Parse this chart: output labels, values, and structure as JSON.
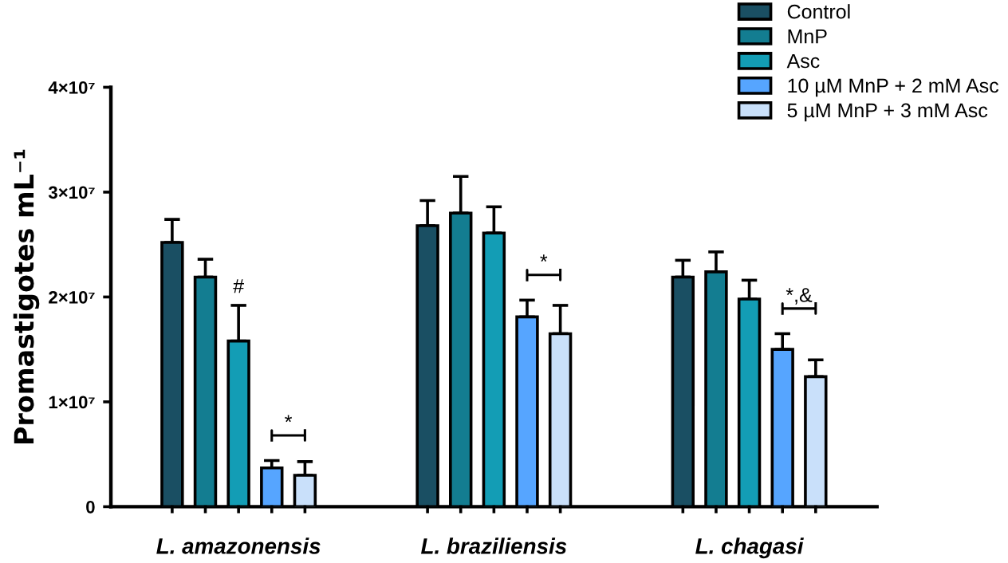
{
  "chart_data": {
    "type": "bar",
    "categories": [
      "L. amazonensis",
      "L. braziliensis",
      "L. chagasi"
    ],
    "ylabel": "Promastigotes mL⁻¹",
    "series": [
      {
        "name": "Control",
        "color": "#1a4f63",
        "values": [
          25200000,
          26800000,
          21900000
        ],
        "errors": [
          [
            25200000,
            27400000
          ],
          [
            26800000,
            29200000
          ],
          [
            21900000,
            23500000
          ]
        ]
      },
      {
        "name": "MnP",
        "color": "#137d91",
        "values": [
          21900000,
          28000000,
          22400000
        ],
        "errors": [
          [
            21900000,
            23600000
          ],
          [
            28000000,
            31500000
          ],
          [
            22400000,
            24300000
          ]
        ]
      },
      {
        "name": "Asc",
        "color": "#139db5",
        "values": [
          15800000,
          26100000,
          19800000
        ],
        "errors": [
          [
            15800000,
            19200000
          ],
          [
            26100000,
            28600000
          ],
          [
            19800000,
            21600000
          ]
        ]
      },
      {
        "name": "10 µM MnP + 2 mM Asc",
        "color": "#56a5ff",
        "values": [
          3700000,
          18100000,
          15000000
        ],
        "errors": [
          [
            3700000,
            4400000
          ],
          [
            18100000,
            19700000
          ],
          [
            15000000,
            16500000
          ]
        ]
      },
      {
        "name": "5 µM MnP + 3 mM Asc",
        "color": "#c9e0fa",
        "values": [
          3000000,
          16500000,
          12400000
        ],
        "errors": [
          [
            3000000,
            4300000
          ],
          [
            16500000,
            19200000
          ],
          [
            12400000,
            14000000
          ]
        ]
      }
    ],
    "ylim": [
      0,
      40000000
    ],
    "yticks": [
      0,
      {
        "value": 10000000,
        "label": "1×10⁷"
      },
      {
        "value": 20000000,
        "label": "2×10⁷"
      },
      {
        "value": 30000000,
        "label": "3×10⁷"
      },
      {
        "value": 40000000,
        "label": "4×10⁷"
      }
    ],
    "annotations": [
      {
        "text": "#",
        "x": "L. amazonensis",
        "y": 19200000
      },
      "*",
      "*",
      "*,&"
    ],
    "legend": "top right",
    "grid": false
  }
}
